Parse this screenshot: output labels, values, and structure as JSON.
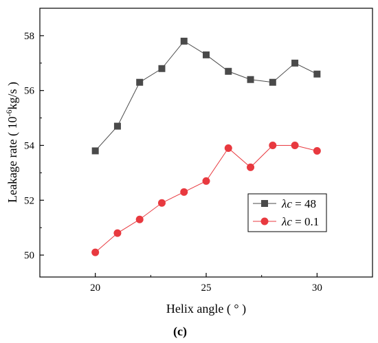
{
  "chart_data": {
    "type": "line",
    "xlabel": "Helix angle ( ° )",
    "ylabel_prefix": "Leakage rate ( 10",
    "ylabel_exp": "-6",
    "ylabel_suffix": "kg/s )",
    "panel_label": "(c)",
    "xlim": [
      17.5,
      32.5
    ],
    "ylim": [
      49.2,
      59.0
    ],
    "xticks": [
      20,
      25,
      30
    ],
    "yticks": [
      50,
      52,
      54,
      56,
      58
    ],
    "legend_position": "center-right",
    "grid": false,
    "x": [
      20,
      21,
      22,
      23,
      24,
      25,
      26,
      27,
      28,
      29,
      30
    ],
    "series": [
      {
        "name_symbol": "λc",
        "name_value": " = 48",
        "marker": "square",
        "color": "#4a4a4a",
        "values": [
          53.8,
          54.7,
          56.3,
          56.8,
          57.8,
          57.3,
          56.7,
          56.4,
          56.3,
          57.0,
          56.6
        ]
      },
      {
        "name_symbol": "λc",
        "name_value": " = 0.1",
        "marker": "circle",
        "color": "#e8393f",
        "values": [
          50.1,
          50.8,
          51.3,
          51.9,
          52.3,
          52.7,
          53.9,
          53.2,
          54.0,
          54.0,
          53.8
        ]
      }
    ]
  }
}
